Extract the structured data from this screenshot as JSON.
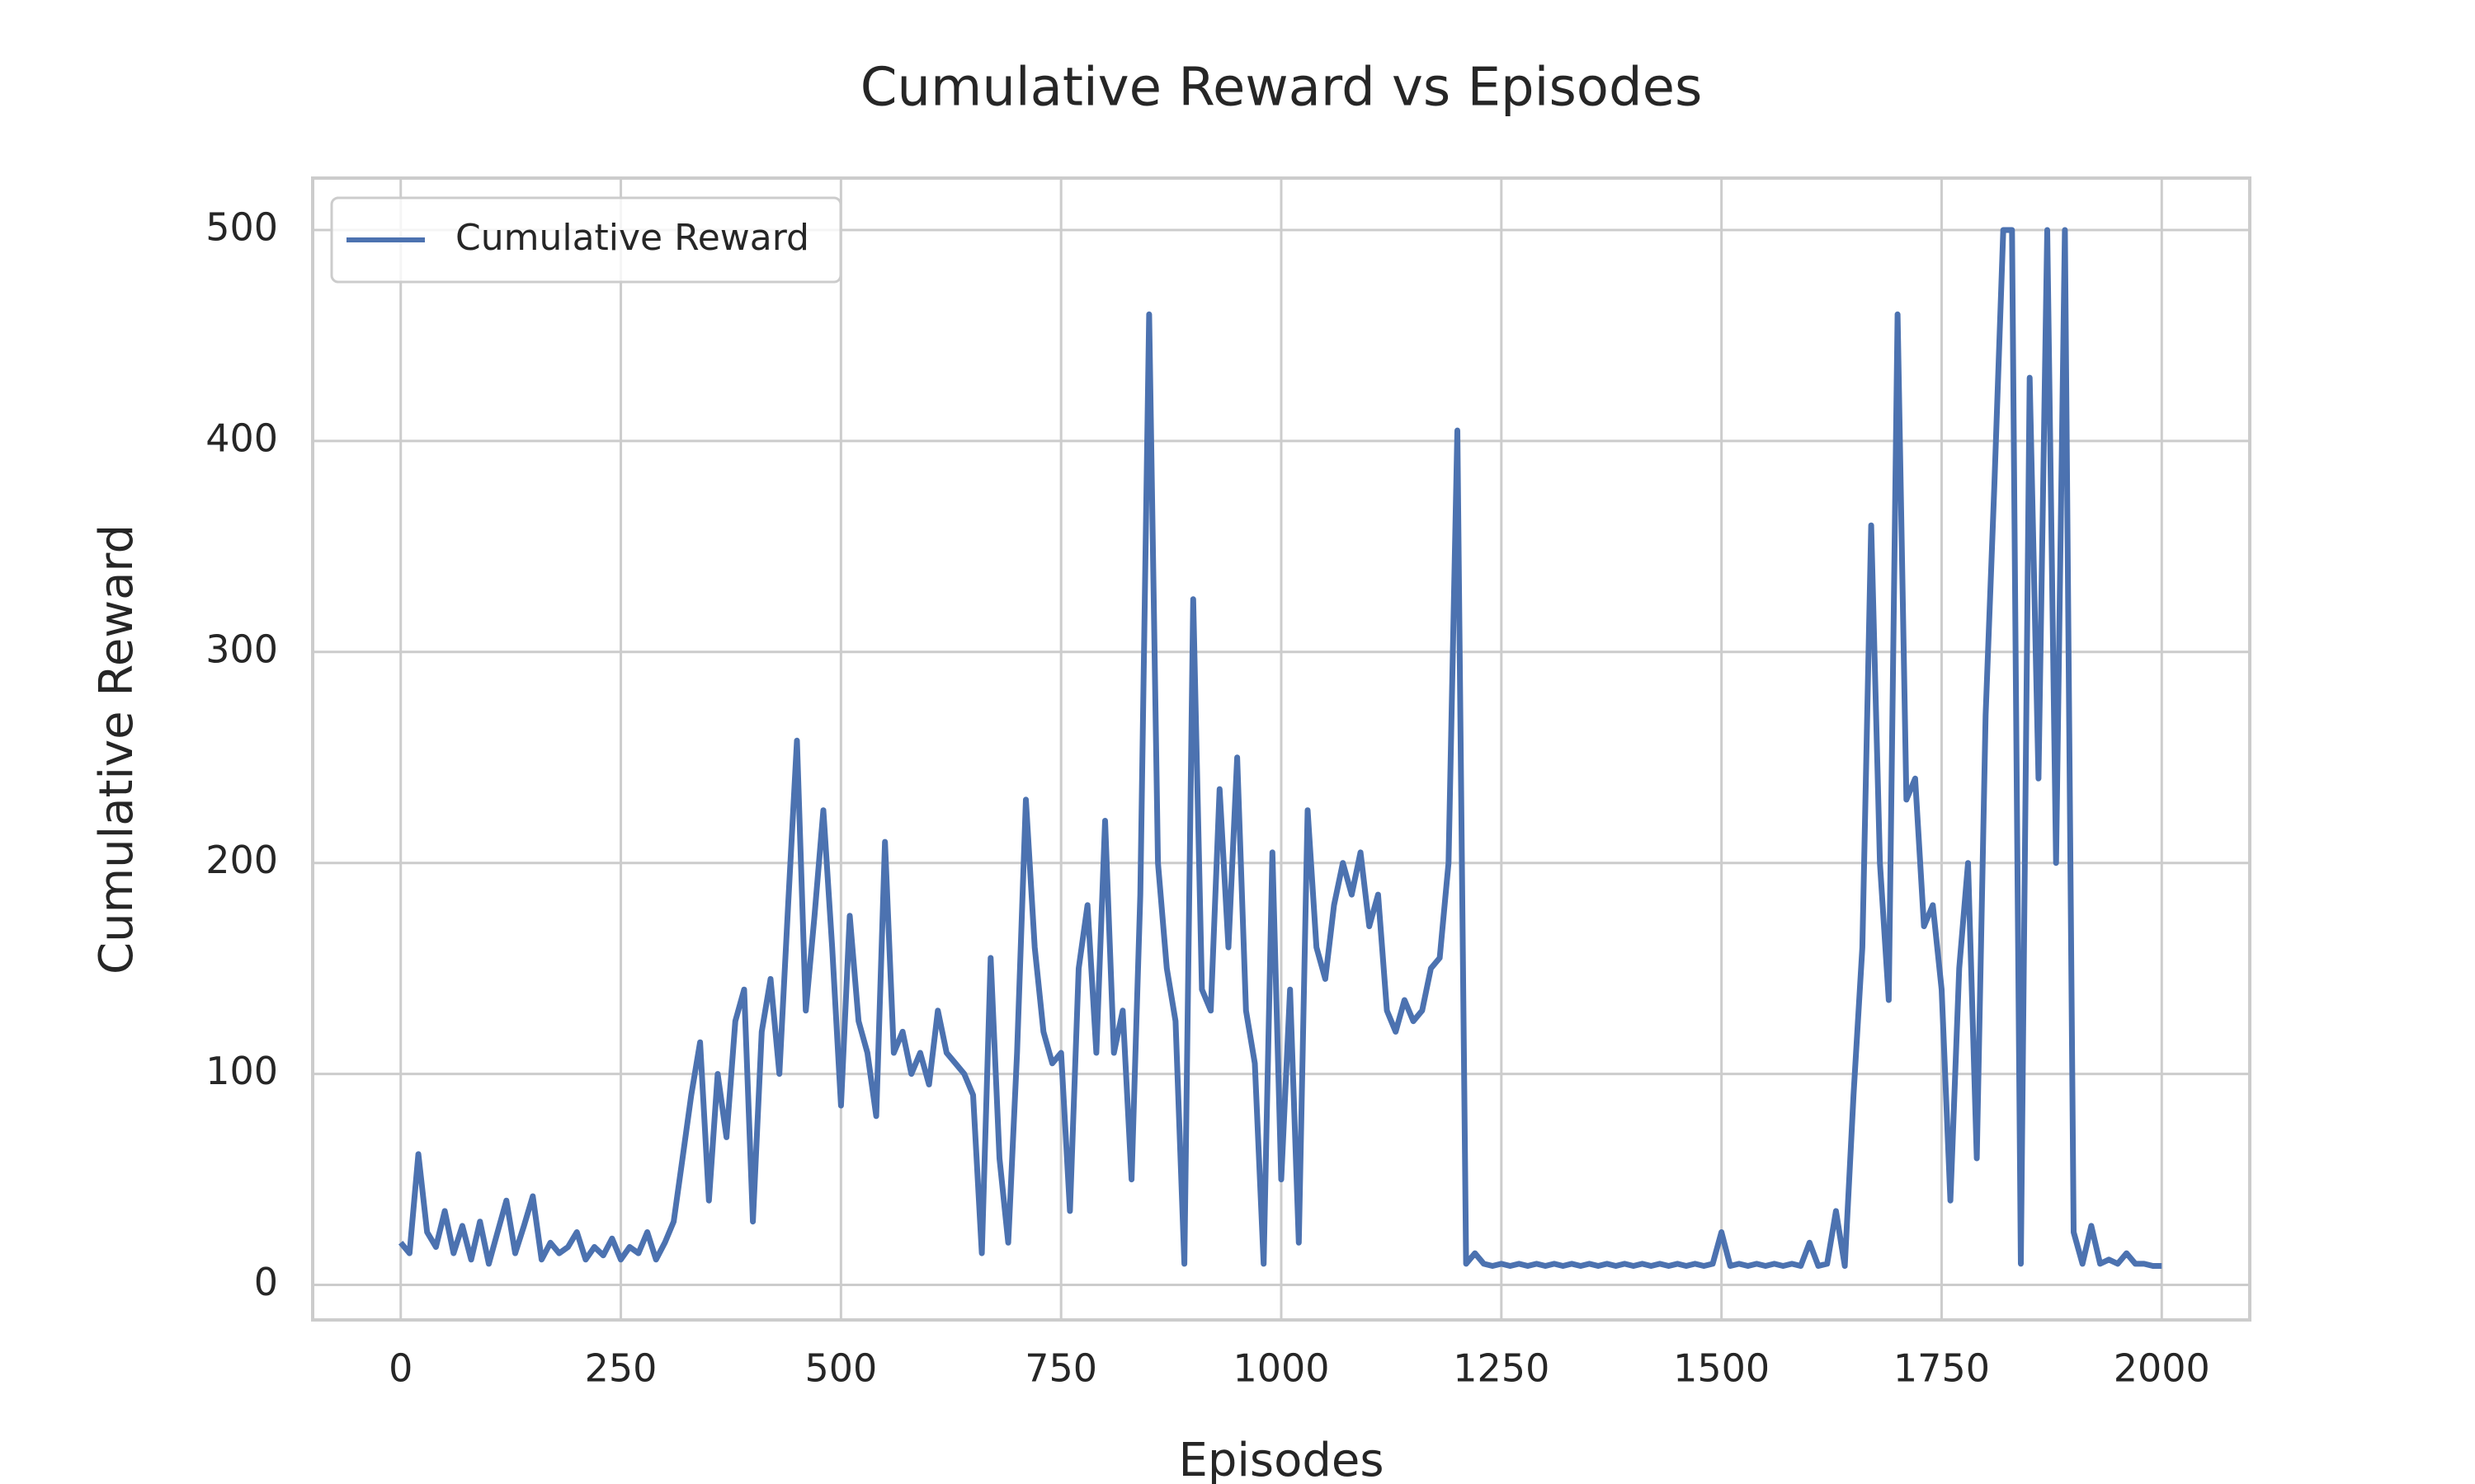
{
  "chart_data": {
    "type": "line",
    "title": "Cumulative Reward vs Episodes",
    "x_label": "Episodes",
    "y_label": "Cumulative Reward",
    "x": [
      0,
      10,
      20,
      30,
      40,
      50,
      60,
      70,
      80,
      90,
      100,
      110,
      120,
      130,
      140,
      150,
      160,
      170,
      180,
      190,
      200,
      210,
      220,
      230,
      240,
      250,
      260,
      270,
      280,
      290,
      300,
      310,
      320,
      330,
      340,
      350,
      360,
      370,
      380,
      390,
      400,
      410,
      420,
      430,
      440,
      450,
      460,
      470,
      480,
      490,
      500,
      510,
      520,
      530,
      540,
      550,
      560,
      570,
      580,
      590,
      600,
      610,
      620,
      630,
      640,
      650,
      660,
      670,
      680,
      690,
      700,
      710,
      720,
      730,
      740,
      750,
      760,
      770,
      780,
      790,
      800,
      810,
      820,
      830,
      840,
      850,
      860,
      870,
      880,
      890,
      900,
      910,
      920,
      930,
      940,
      950,
      960,
      970,
      980,
      990,
      1000,
      1010,
      1020,
      1030,
      1040,
      1050,
      1060,
      1070,
      1080,
      1090,
      1100,
      1110,
      1120,
      1130,
      1140,
      1150,
      1160,
      1170,
      1180,
      1190,
      1200,
      1210,
      1220,
      1230,
      1240,
      1250,
      1260,
      1270,
      1280,
      1290,
      1300,
      1310,
      1320,
      1330,
      1340,
      1350,
      1360,
      1370,
      1380,
      1390,
      1400,
      1410,
      1420,
      1430,
      1440,
      1450,
      1460,
      1470,
      1480,
      1490,
      1500,
      1510,
      1520,
      1530,
      1540,
      1550,
      1560,
      1570,
      1580,
      1590,
      1600,
      1610,
      1620,
      1630,
      1640,
      1650,
      1660,
      1670,
      1680,
      1690,
      1700,
      1710,
      1720,
      1730,
      1740,
      1750,
      1760,
      1770,
      1780,
      1790,
      1800,
      1810,
      1820,
      1830,
      1840,
      1850,
      1860,
      1870,
      1880,
      1890,
      1900,
      1910,
      1920,
      1930,
      1940,
      1950,
      1960,
      1970,
      1980,
      1990,
      2000
    ],
    "series": [
      {
        "name": "Cumulative Reward",
        "color": "#4c72b0",
        "values": [
          20,
          15,
          62,
          25,
          18,
          35,
          15,
          28,
          12,
          30,
          10,
          25,
          40,
          15,
          28,
          42,
          12,
          20,
          15,
          18,
          25,
          12,
          18,
          14,
          22,
          12,
          18,
          15,
          25,
          12,
          20,
          30,
          60,
          90,
          115,
          40,
          100,
          70,
          125,
          140,
          30,
          120,
          145,
          100,
          180,
          258,
          130,
          175,
          225,
          160,
          85,
          175,
          125,
          110,
          80,
          210,
          110,
          120,
          100,
          110,
          95,
          130,
          110,
          105,
          100,
          90,
          15,
          155,
          60,
          20,
          110,
          230,
          160,
          120,
          105,
          110,
          35,
          150,
          180,
          110,
          220,
          110,
          130,
          50,
          185,
          460,
          200,
          150,
          125,
          10,
          325,
          140,
          130,
          235,
          160,
          250,
          130,
          105,
          10,
          205,
          50,
          140,
          20,
          225,
          160,
          145,
          180,
          200,
          185,
          205,
          170,
          185,
          130,
          120,
          135,
          125,
          130,
          150,
          155,
          200,
          405,
          10,
          15,
          10,
          9,
          10,
          9,
          10,
          9,
          10,
          9,
          10,
          9,
          10,
          9,
          10,
          9,
          10,
          9,
          10,
          9,
          10,
          9,
          10,
          9,
          10,
          9,
          10,
          9,
          10,
          25,
          9,
          10,
          9,
          10,
          9,
          10,
          9,
          10,
          9,
          20,
          9,
          10,
          35,
          9,
          90,
          160,
          360,
          200,
          135,
          460,
          230,
          240,
          170,
          180,
          140,
          40,
          150,
          200,
          60,
          270,
          380,
          500,
          500,
          10,
          430,
          240,
          500,
          200,
          500,
          25,
          10,
          28,
          10,
          12,
          10,
          15,
          10,
          10,
          9,
          9
        ]
      }
    ],
    "xlim": [
      -100,
      2100
    ],
    "ylim": [
      -16.6,
      524.6
    ],
    "xticks": [
      0,
      250,
      500,
      750,
      1000,
      1250,
      1500,
      1750,
      2000
    ],
    "yticks": [
      0,
      100,
      200,
      300,
      400,
      500
    ],
    "grid": true,
    "legend": "upper left"
  }
}
